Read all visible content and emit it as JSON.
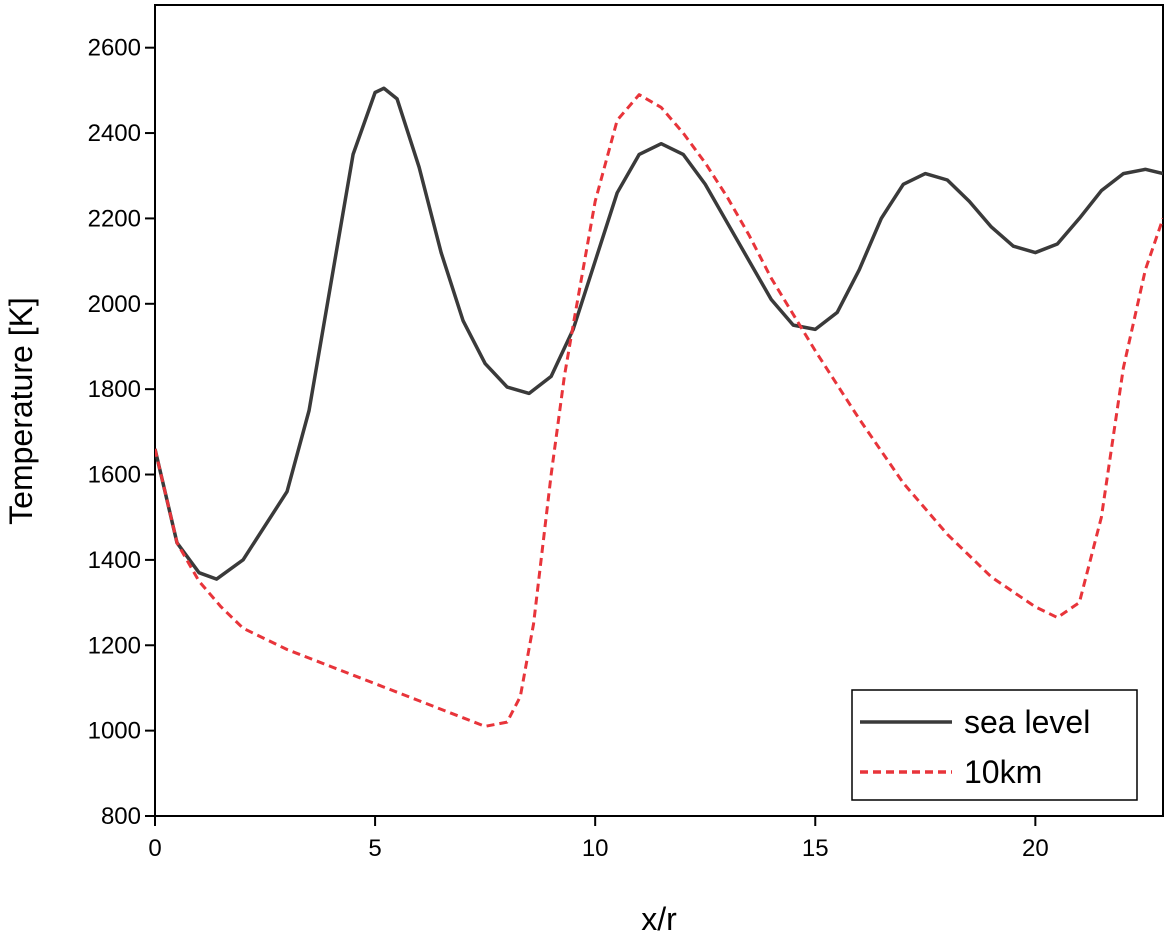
{
  "chart_data": {
    "type": "line",
    "x_label": "x/r",
    "y_label": "Temperature [K]",
    "xlim": [
      0,
      22.9
    ],
    "ylim": [
      800,
      2700
    ],
    "xticks": [
      0,
      5,
      10,
      15,
      20
    ],
    "yticks": [
      800,
      1000,
      1200,
      1400,
      1600,
      1800,
      2000,
      2200,
      2400,
      2600
    ],
    "legend": "lower right",
    "series": [
      {
        "name": "sea level",
        "color": "#3a3a3a",
        "dash": "solid",
        "x": [
          0,
          0.5,
          1,
          1.4,
          2,
          3,
          3.5,
          4,
          4.5,
          5,
          5.2,
          5.5,
          6,
          6.5,
          7,
          7.5,
          8,
          8.5,
          9,
          9.5,
          10,
          10.5,
          11,
          11.5,
          12,
          12.5,
          13,
          13.5,
          14,
          14.5,
          15,
          15.5,
          16,
          16.5,
          17,
          17.5,
          18,
          18.5,
          19,
          19.5,
          20,
          20.5,
          21,
          21.5,
          22,
          22.5,
          22.9
        ],
        "values": [
          1660,
          1440,
          1370,
          1355,
          1400,
          1560,
          1750,
          2050,
          2350,
          2495,
          2505,
          2480,
          2320,
          2120,
          1960,
          1860,
          1805,
          1790,
          1830,
          1940,
          2100,
          2260,
          2350,
          2375,
          2350,
          2280,
          2190,
          2100,
          2010,
          1950,
          1940,
          1980,
          2080,
          2200,
          2280,
          2305,
          2290,
          2240,
          2180,
          2135,
          2120,
          2140,
          2200,
          2265,
          2305,
          2315,
          2305
        ]
      },
      {
        "name": "10km",
        "color": "#e8343a",
        "dash": "dashed",
        "x": [
          0,
          0.5,
          1,
          1.5,
          2,
          3,
          4,
          5,
          6,
          7,
          7.5,
          8,
          8.3,
          8.6,
          9,
          9.3,
          9.5,
          10,
          10.5,
          11,
          11.5,
          12,
          12.5,
          13,
          13.5,
          14,
          15,
          16,
          17,
          18,
          19,
          20,
          20.5,
          21,
          21.5,
          22,
          22.5,
          22.9
        ],
        "values": [
          1660,
          1440,
          1350,
          1290,
          1240,
          1190,
          1150,
          1110,
          1070,
          1030,
          1010,
          1020,
          1080,
          1250,
          1600,
          1830,
          1950,
          2240,
          2430,
          2490,
          2460,
          2400,
          2330,
          2250,
          2160,
          2060,
          1890,
          1730,
          1580,
          1460,
          1360,
          1290,
          1265,
          1300,
          1500,
          1850,
          2080,
          2200
        ]
      }
    ]
  }
}
